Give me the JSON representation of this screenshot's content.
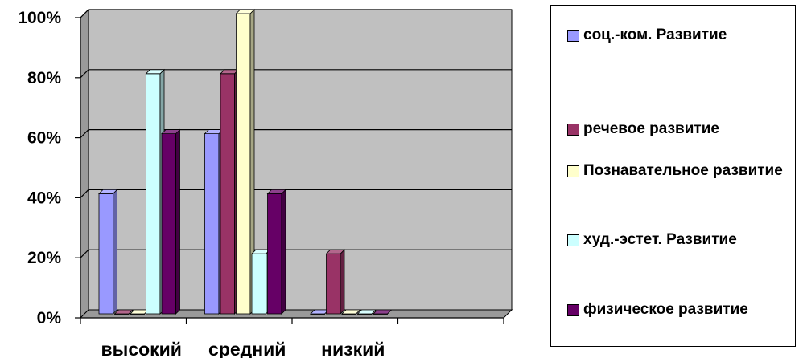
{
  "chart_data": {
    "type": "bar",
    "categories": [
      "высокий",
      "средний",
      "низкий",
      ""
    ],
    "series": [
      {
        "name": "соц.-ком. Развитие",
        "values": [
          40,
          60,
          0,
          0
        ],
        "color": "#9999ff"
      },
      {
        "name": "речевое развитие",
        "values": [
          0,
          80,
          20,
          0
        ],
        "color": "#993366"
      },
      {
        "name": "Познавательное развитие",
        "values": [
          0,
          100,
          0,
          0
        ],
        "color": "#ffffcc"
      },
      {
        "name": "худ.-эстет. Развитие",
        "values": [
          80,
          20,
          0,
          0
        ],
        "color": "#ccffff"
      },
      {
        "name": "физическое развитие",
        "values": [
          60,
          40,
          0,
          0
        ],
        "color": "#660066"
      }
    ],
    "ylim": [
      0,
      100
    ],
    "yticks": [
      "0%",
      "20%",
      "40%",
      "60%",
      "80%",
      "100%"
    ],
    "grid": true,
    "plot_background": "#c0c0c0",
    "legend_position": "right",
    "title": "",
    "xlabel": "",
    "ylabel": ""
  }
}
